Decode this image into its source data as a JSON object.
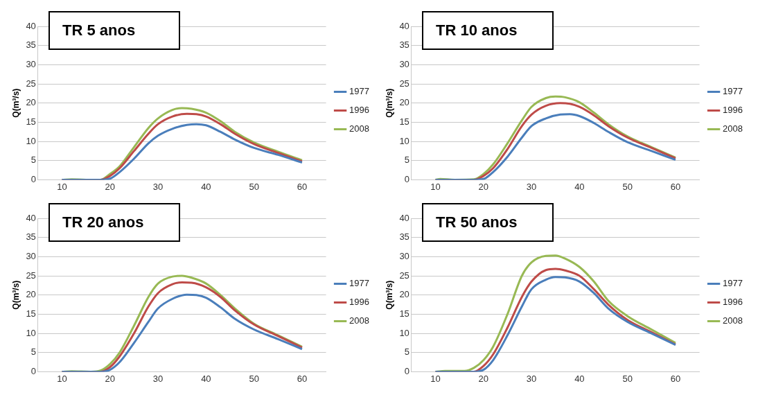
{
  "chart_data": [
    {
      "type": "line",
      "title": "TR 5 anos",
      "ylabel": "Q(m³/s)",
      "xlim": [
        5,
        65
      ],
      "xticks": [
        10,
        20,
        30,
        40,
        50,
        60
      ],
      "ylim": [
        0,
        40
      ],
      "yticks": [
        0,
        5,
        10,
        15,
        20,
        25,
        30,
        35,
        40
      ],
      "grid": "y",
      "legend": "right",
      "series": [
        {
          "name": "1977",
          "color": "#4a7ebb",
          "x": [
            10,
            15,
            18,
            20,
            22,
            25,
            28,
            30,
            33,
            36,
            38,
            40,
            43,
            46,
            50,
            55,
            60
          ],
          "values": [
            0,
            0,
            0,
            0.3,
            2,
            5.5,
            9.5,
            11.5,
            13.3,
            14.3,
            14.5,
            14.2,
            12.5,
            10.5,
            8.3,
            6.5,
            4.5
          ]
        },
        {
          "name": "1996",
          "color": "#be4b48",
          "x": [
            10,
            15,
            18,
            20,
            22,
            25,
            28,
            30,
            33,
            36,
            38,
            40,
            43,
            46,
            50,
            55,
            60
          ],
          "values": [
            0,
            0,
            0,
            1,
            3,
            7.5,
            12,
            14.5,
            16.5,
            17.2,
            17.1,
            16.5,
            14.5,
            12,
            9.3,
            7,
            4.8
          ]
        },
        {
          "name": "2008",
          "color": "#98b954",
          "x": [
            10,
            12,
            15,
            18,
            20,
            22,
            25,
            28,
            30,
            33,
            35,
            37,
            40,
            43,
            46,
            50,
            55,
            60
          ],
          "values": [
            0,
            0.1,
            0,
            0,
            1.5,
            3.5,
            8.5,
            13.5,
            16,
            18.2,
            18.7,
            18.5,
            17.5,
            15.3,
            12.5,
            9.7,
            7.3,
            5.1
          ]
        }
      ]
    },
    {
      "type": "line",
      "title": "TR 10 anos",
      "ylabel": "Q(m³/s)",
      "xlim": [
        5,
        65
      ],
      "xticks": [
        10,
        20,
        30,
        40,
        50,
        60
      ],
      "ylim": [
        0,
        40
      ],
      "yticks": [
        0,
        5,
        10,
        15,
        20,
        25,
        30,
        35,
        40
      ],
      "grid": "y",
      "legend": "right",
      "series": [
        {
          "name": "1977",
          "color": "#4a7ebb",
          "x": [
            10,
            15,
            18,
            20,
            22,
            25,
            28,
            30,
            33,
            36,
            38,
            40,
            43,
            46,
            50,
            55,
            60
          ],
          "values": [
            0,
            0,
            0,
            0.2,
            2,
            6,
            11,
            14,
            16,
            17,
            17.1,
            16.6,
            14.8,
            12.5,
            9.8,
            7.5,
            5.2
          ]
        },
        {
          "name": "1996",
          "color": "#be4b48",
          "x": [
            10,
            15,
            18,
            20,
            22,
            25,
            28,
            30,
            33,
            36,
            38,
            40,
            43,
            46,
            50,
            55,
            60
          ],
          "values": [
            0,
            0,
            0,
            1,
            3,
            8,
            14,
            17,
            19.3,
            20,
            19.8,
            19,
            16.8,
            14,
            11,
            8.3,
            5.6
          ]
        },
        {
          "name": "2008",
          "color": "#98b954",
          "x": [
            10,
            11,
            14,
            18,
            20,
            22,
            25,
            28,
            30,
            33,
            35,
            37,
            40,
            43,
            46,
            50,
            55,
            60
          ],
          "values": [
            0,
            0.2,
            0,
            0.1,
            1.5,
            4,
            9.5,
            15.5,
            19,
            21.3,
            21.7,
            21.5,
            20.2,
            17.5,
            14.5,
            11.3,
            8.5,
            5.8
          ]
        }
      ]
    },
    {
      "type": "line",
      "title": "TR 20 anos",
      "ylabel": "Q(m³/s)",
      "xlim": [
        5,
        65
      ],
      "xticks": [
        10,
        20,
        30,
        40,
        50,
        60
      ],
      "ylim": [
        0,
        40
      ],
      "yticks": [
        0,
        5,
        10,
        15,
        20,
        25,
        30,
        35,
        40
      ],
      "grid": "y",
      "legend": "right",
      "series": [
        {
          "name": "1977",
          "color": "#4a7ebb",
          "x": [
            10,
            15,
            18,
            20,
            22,
            25,
            28,
            30,
            33,
            36,
            38,
            40,
            43,
            46,
            50,
            55,
            60
          ],
          "values": [
            0,
            0,
            0,
            0.5,
            2.5,
            7.5,
            13,
            16.5,
            19,
            20.1,
            20,
            19.3,
            16.8,
            13.8,
            11,
            8.5,
            5.9
          ]
        },
        {
          "name": "1996",
          "color": "#be4b48",
          "x": [
            10,
            15,
            18,
            20,
            22,
            25,
            28,
            30,
            33,
            35,
            37,
            40,
            43,
            46,
            50,
            55,
            60
          ],
          "values": [
            0,
            0,
            0,
            1.2,
            4,
            10,
            17,
            20.5,
            22.8,
            23.3,
            23.2,
            22,
            19.5,
            16,
            12.3,
            9.3,
            6.3
          ]
        },
        {
          "name": "2008",
          "color": "#98b954",
          "x": [
            10,
            12,
            16,
            18,
            20,
            22,
            25,
            28,
            30,
            33,
            35,
            37,
            40,
            43,
            46,
            50,
            55,
            60
          ],
          "values": [
            0,
            0.1,
            0,
            0.3,
            2,
            5,
            12,
            19.5,
            23,
            24.8,
            25,
            24.5,
            23,
            20,
            16.5,
            12.5,
            9.5,
            6.5
          ]
        }
      ]
    },
    {
      "type": "line",
      "title": "TR 50 anos",
      "ylabel": "Q(m³/s)",
      "xlim": [
        5,
        65
      ],
      "xticks": [
        10,
        20,
        30,
        40,
        50,
        60
      ],
      "ylim": [
        0,
        40
      ],
      "yticks": [
        0,
        5,
        10,
        15,
        20,
        25,
        30,
        35,
        40
      ],
      "grid": "y",
      "legend": "right",
      "series": [
        {
          "name": "1977",
          "color": "#4a7ebb",
          "x": [
            10,
            15,
            18,
            20,
            22,
            25,
            28,
            30,
            33,
            35,
            37,
            40,
            43,
            46,
            50,
            55,
            60
          ],
          "values": [
            0,
            0,
            0,
            0.5,
            3,
            9.5,
            17,
            21.5,
            24,
            24.7,
            24.6,
            23.5,
            20.5,
            16.5,
            13,
            10,
            7
          ]
        },
        {
          "name": "1996",
          "color": "#be4b48",
          "x": [
            10,
            15,
            18,
            20,
            22,
            25,
            28,
            30,
            33,
            35,
            37,
            40,
            43,
            46,
            50,
            55,
            60
          ],
          "values": [
            0,
            0,
            0,
            1.5,
            4.5,
            11.5,
            19.5,
            23.5,
            26.5,
            26.8,
            26.4,
            25,
            21.5,
            17.5,
            13.5,
            10.3,
            7.1
          ]
        },
        {
          "name": "2008",
          "color": "#98b954",
          "x": [
            10,
            12,
            16,
            18,
            20,
            22,
            25,
            28,
            30,
            33,
            35,
            37,
            40,
            43,
            46,
            50,
            55,
            60
          ],
          "values": [
            0,
            0.2,
            0.2,
            1,
            3,
            6.5,
            15,
            25,
            28.5,
            30.2,
            30.3,
            29.5,
            27.3,
            23.5,
            18.5,
            14.5,
            11,
            7.5
          ]
        }
      ]
    }
  ]
}
